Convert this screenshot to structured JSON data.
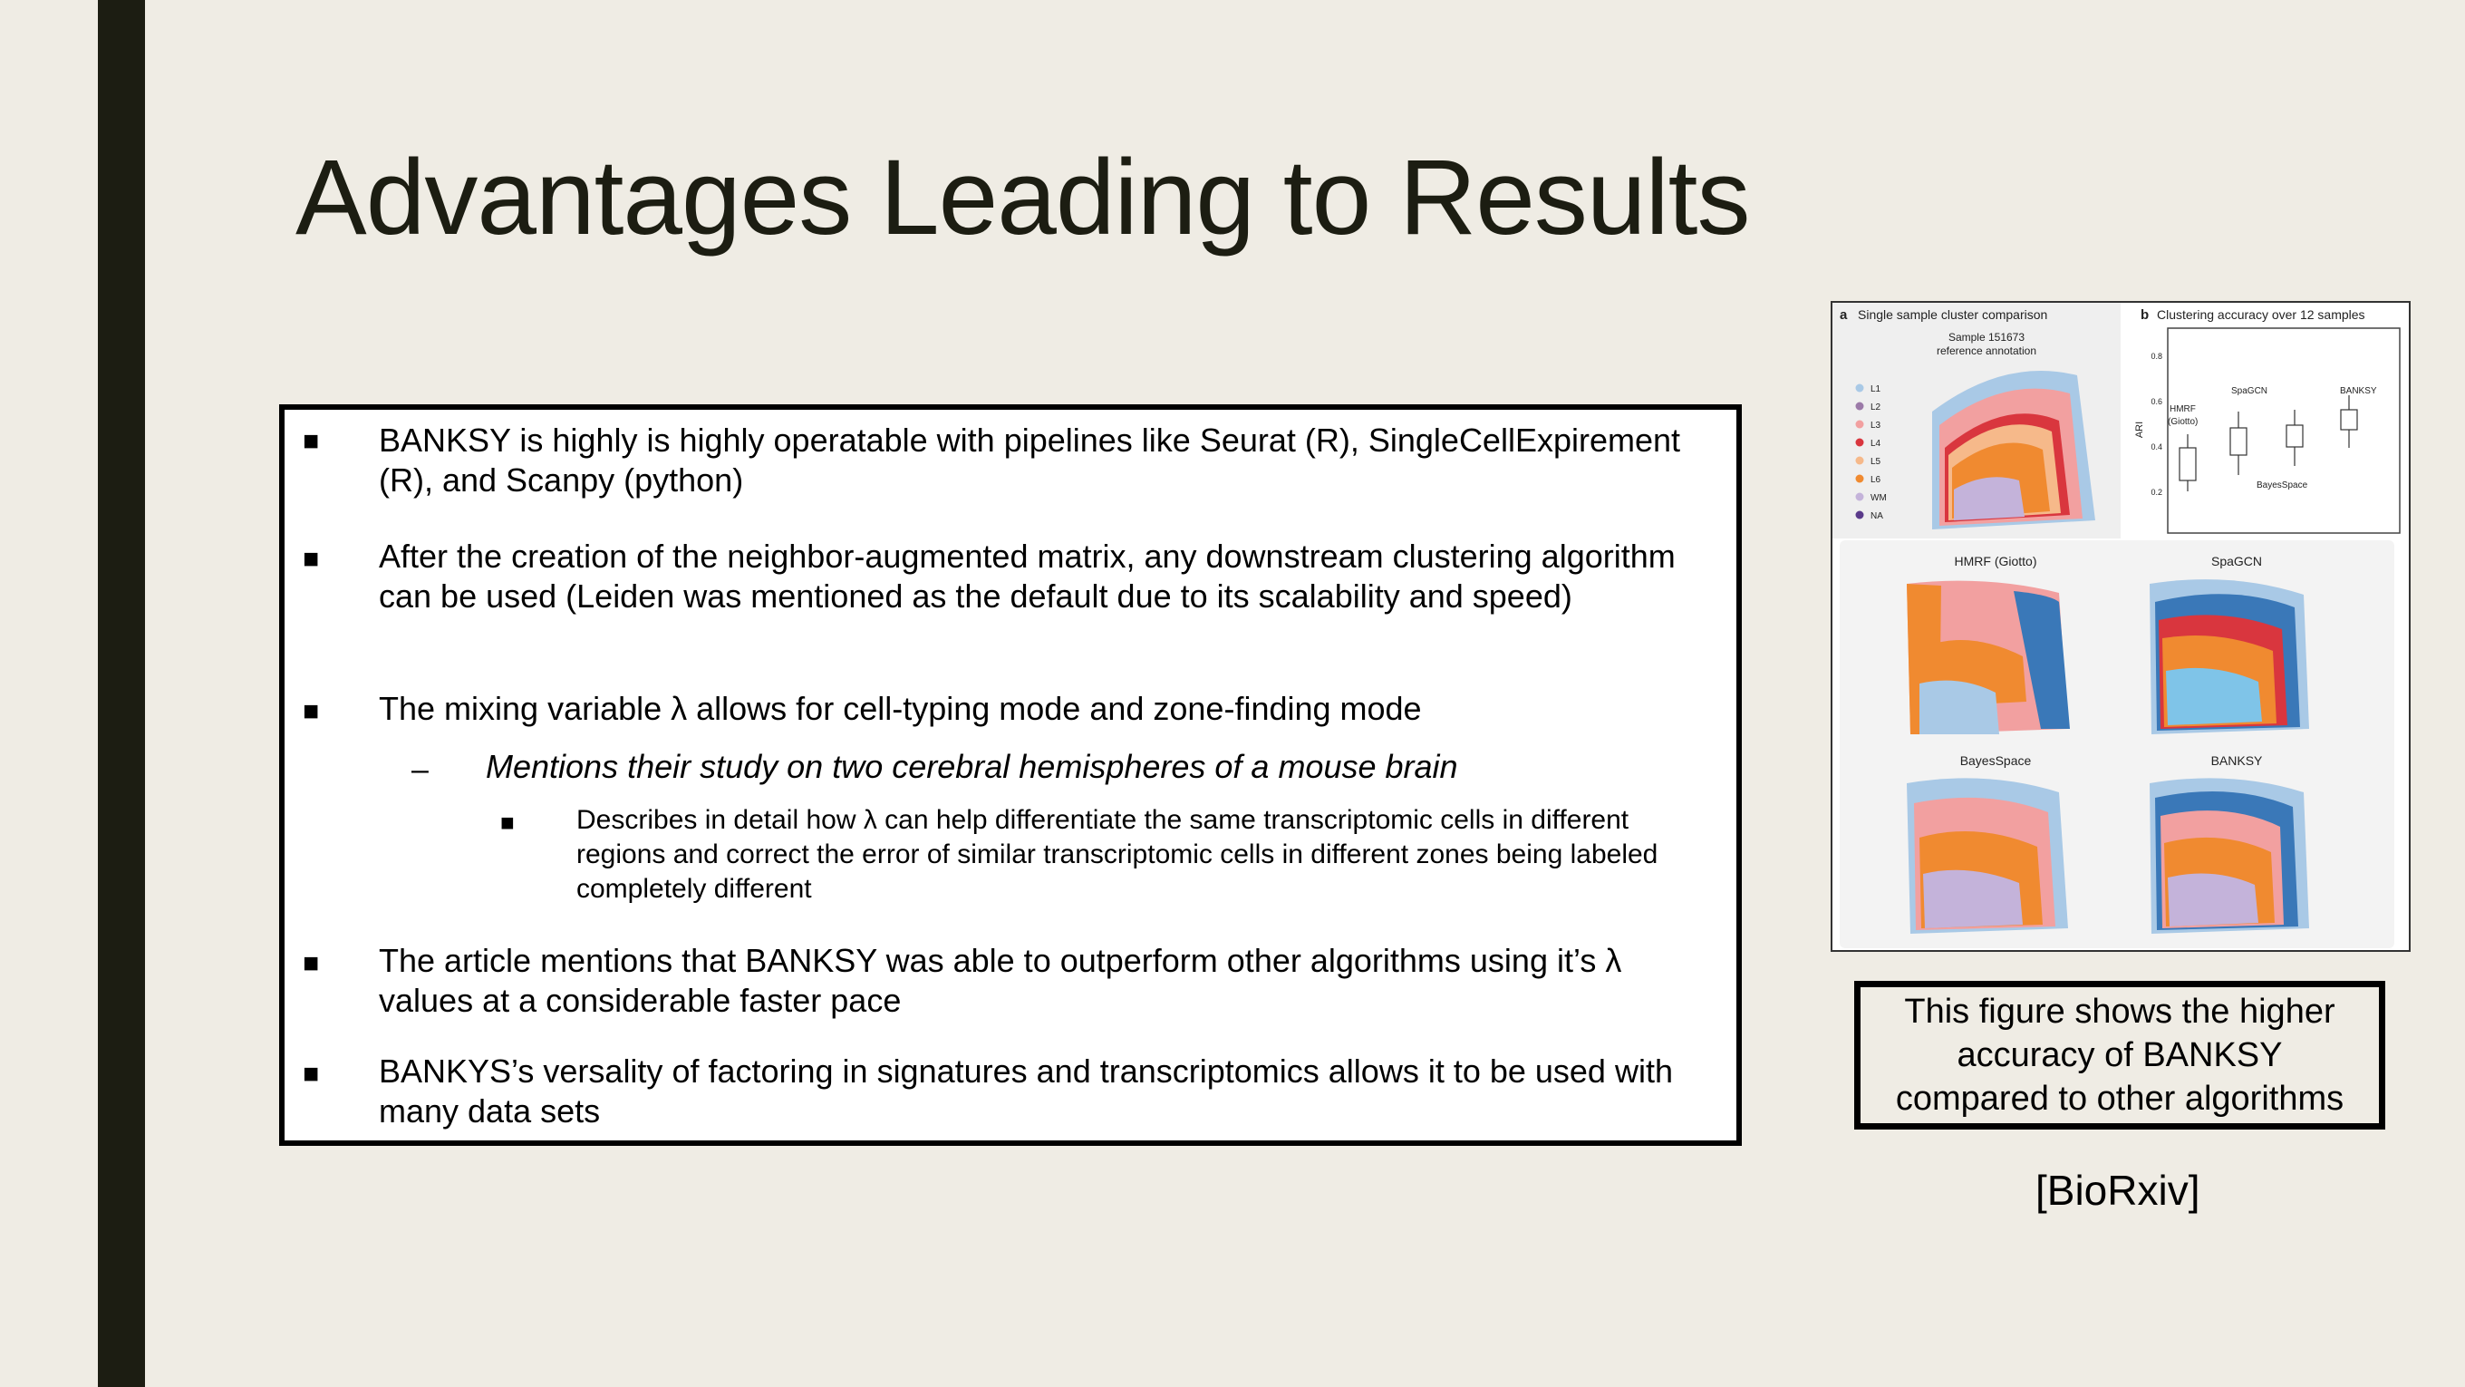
{
  "slide": {
    "title": "Advantages Leading to Results",
    "bullets": [
      {
        "marker": "■",
        "text": "BANKSY is highly is highly operatable with pipelines like Seurat (R), SingleCellExpirement (R), and Scanpy (python)"
      },
      {
        "marker": "■",
        "text": "After the creation of the neighbor-augmented matrix, any downstream clustering algorithm can be used (Leiden was mentioned as the default due to its scalability and speed)"
      },
      {
        "marker": "■",
        "text": "The mixing variable λ allows for cell-typing mode and zone-finding mode"
      },
      {
        "marker": "–",
        "text": "Mentions their study on two cerebral hemispheres of a mouse brain"
      },
      {
        "marker": "■",
        "text": "Describes in detail how λ can help differentiate the same transcriptomic cells in different regions and correct the error of similar transcriptomic cells in different zones being labeled completely different"
      },
      {
        "marker": "■",
        "text": "The article mentions that BANKSY was able to outperform other algorithms using it’s λ values at a considerable faster pace"
      },
      {
        "marker": "■",
        "text": "BANKYS’s versality of factoring in signatures and transcriptomics allows it to be used with many data sets"
      }
    ],
    "figure": {
      "panel_a_label": "a",
      "panel_a_title": "Single sample cluster comparison",
      "panel_a_subtitle_1": "Sample 151673",
      "panel_a_subtitle_2": "reference annotation",
      "legend": [
        {
          "label": "L1",
          "color": "#a9c9e6"
        },
        {
          "label": "L2",
          "color": "#9b7aa8"
        },
        {
          "label": "L3",
          "color": "#f2a0a0"
        },
        {
          "label": "L4",
          "color": "#d9363e"
        },
        {
          "label": "L5",
          "color": "#f6b98a"
        },
        {
          "label": "L6",
          "color": "#f08a30"
        },
        {
          "label": "WM",
          "color": "#c4b3da"
        },
        {
          "label": "NA",
          "color": "#5a3a8a"
        }
      ],
      "panel_b_label": "b",
      "panel_b_title": "Clustering accuracy over 12 samples",
      "ari_label": "ARI",
      "y_ticks": [
        "0.8",
        "0.6",
        "0.4",
        "0.2"
      ],
      "methods": {
        "hmrf_1": "HMRF",
        "hmrf_2": "(Giotto)",
        "spagcn": "SpaGCN",
        "bayesspace": "BayesSpace",
        "banksy": "BANKSY"
      },
      "maps": {
        "hmrf": "HMRF (Giotto)",
        "spagcn": "SpaGCN",
        "bayesspace": "BayesSpace",
        "banksy": "BANKSY"
      },
      "banksy_color": "#e07a2a"
    },
    "caption": "This figure shows the higher accuracy of BANKSY compared to other algorithms",
    "source": "[BioRxiv]"
  }
}
